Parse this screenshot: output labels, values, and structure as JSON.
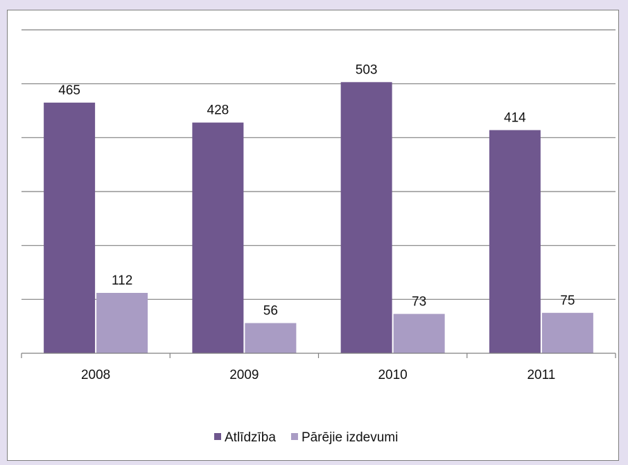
{
  "chart_data": {
    "type": "bar",
    "categories": [
      "2008",
      "2009",
      "2010",
      "2011"
    ],
    "series": [
      {
        "name": "Atlīdzība",
        "values": [
          465,
          428,
          503,
          414
        ],
        "color": "#6f578e"
      },
      {
        "name": "Pārējie izdevumi",
        "values": [
          112,
          56,
          73,
          75
        ],
        "color": "#a99cc4"
      }
    ],
    "ylim": [
      0,
      600
    ],
    "grid": true,
    "data_labels": true,
    "legend_position": "bottom"
  },
  "colors": {
    "page_background": "#e4dff0",
    "frame_background": "#ffffff",
    "gridline": "#7f7f7f"
  }
}
